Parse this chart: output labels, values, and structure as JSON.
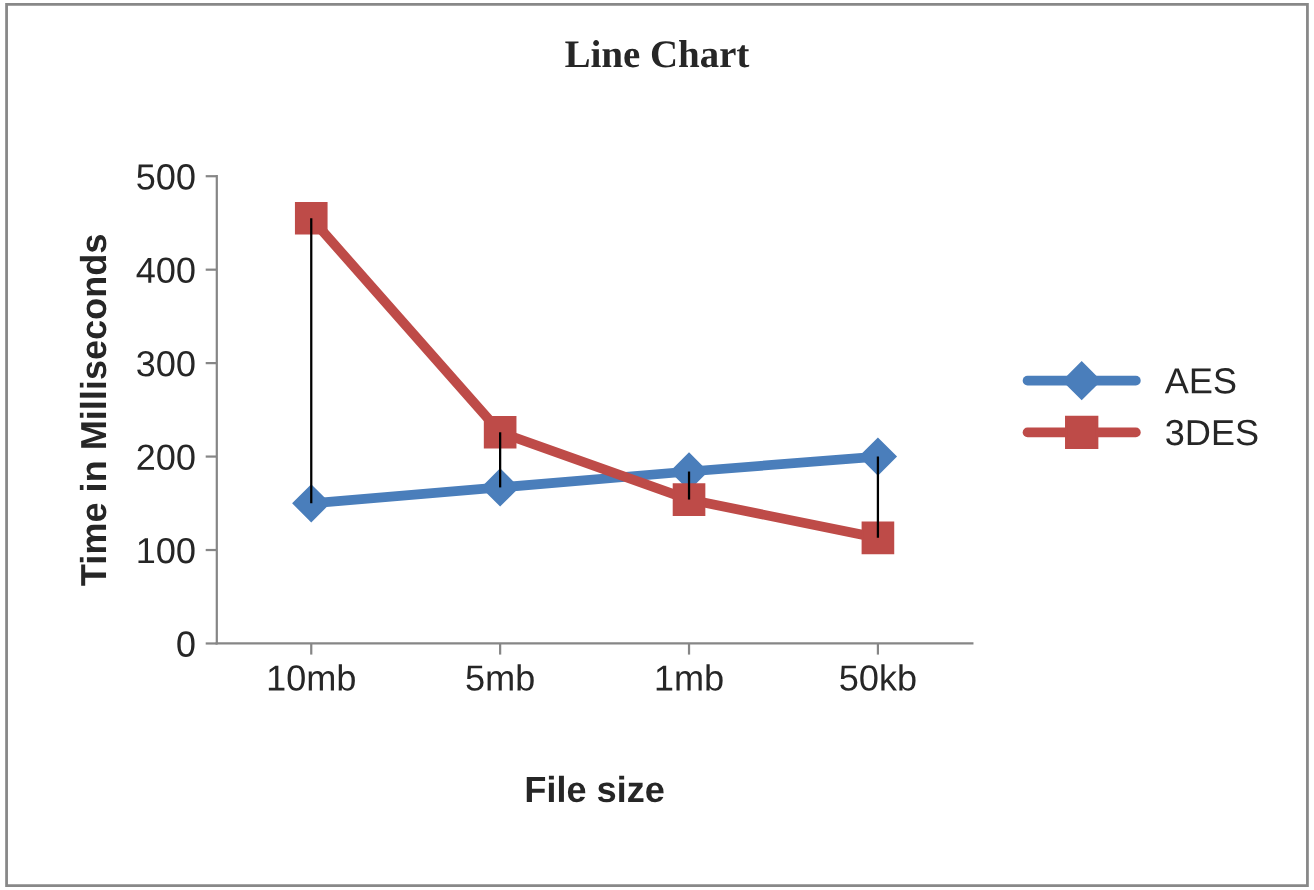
{
  "chart_data": {
    "type": "line",
    "title": "Line Chart",
    "xlabel": "File size",
    "ylabel": "Time in Milliseconds",
    "categories": [
      "10mb",
      "5mb",
      "1mb",
      "50kb"
    ],
    "series": [
      {
        "name": "AES",
        "color": "#4a7ebb",
        "values": [
          150,
          167,
          184,
          200
        ],
        "marker": "diamond"
      },
      {
        "name": "3DES",
        "color": "#be4b48",
        "values": [
          455,
          226,
          154,
          113
        ],
        "marker": "square"
      },
      {
        "type": "bar",
        "color": "#000000",
        "base": [
          150,
          167,
          154,
          113
        ],
        "values": [
          305,
          59,
          30,
          87
        ]
      }
    ],
    "ylim": [
      0,
      500
    ],
    "yticks": [
      0,
      100,
      200,
      300,
      400,
      500
    ],
    "grid": false,
    "legend": "right",
    "line_style": "solid"
  }
}
